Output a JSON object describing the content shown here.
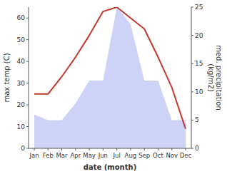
{
  "chart_data": {
    "type": "line",
    "xlabel": "date (month)",
    "ylabel": "max temp (C)",
    "y2label": "med. precipitation\n(kg/m2)",
    "categories": [
      "Jan",
      "Feb",
      "Mar",
      "Apr",
      "May",
      "Jun",
      "Jul",
      "Aug",
      "Sep",
      "Oct",
      "Nov",
      "Dec"
    ],
    "series": [
      {
        "type": "area",
        "axis": "y2",
        "color": "#c5caf5",
        "values": [
          6,
          5,
          5,
          8,
          12,
          12,
          25,
          22,
          12,
          12,
          5,
          5
        ]
      },
      {
        "type": "line",
        "color": "#c0392b",
        "values": [
          25,
          25,
          33,
          42,
          52,
          63,
          65,
          60,
          55,
          42,
          28,
          9
        ]
      }
    ],
    "ylim": [
      0,
      65
    ],
    "yticks": [
      0,
      10,
      20,
      30,
      40,
      50,
      60
    ],
    "y2lim": [
      0,
      25
    ],
    "y2ticks": [
      0,
      5,
      10,
      15,
      20,
      25
    ],
    "grid": false
  }
}
